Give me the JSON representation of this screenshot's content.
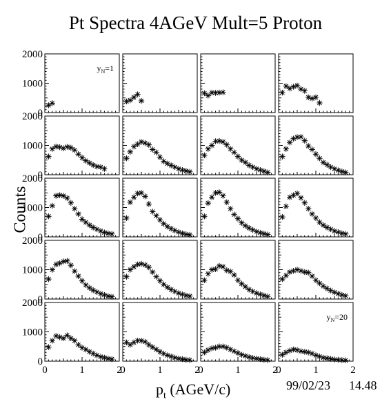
{
  "title": "Pt Spectra 4AGeV Mult=5 Proton",
  "xlabel_main": "p",
  "xlabel_sub": "t",
  "xlabel_unit": " (AGeV/c)",
  "ylabel": "Counts",
  "date": "99/02/23",
  "time": "14.48",
  "chart_data": {
    "type": "scatter",
    "marker": "asterisk",
    "layout": "5 rows x 4 columns of panels",
    "xlim": [
      0,
      2
    ],
    "ylim": [
      0,
      2000
    ],
    "x_ticks": [
      "0",
      "1",
      "2"
    ],
    "y_ticks": [
      "0",
      "1000",
      "2000"
    ],
    "xlabel": "p_t (AGeV/c)",
    "ylabel": "Counts",
    "annotations": [
      {
        "panel": 1,
        "text": "y_N=1"
      },
      {
        "panel": 20,
        "text": "y_N=20"
      }
    ],
    "panels": [
      {
        "x": [
          0.1,
          0.2
        ],
        "y": [
          250,
          320
        ]
      },
      {
        "x": [
          0.1,
          0.2,
          0.3,
          0.4,
          0.5
        ],
        "y": [
          380,
          420,
          520,
          620,
          400
        ]
      },
      {
        "x": [
          0.1,
          0.2,
          0.3,
          0.4,
          0.5,
          0.6
        ],
        "y": [
          660,
          580,
          680,
          670,
          680,
          690
        ]
      },
      {
        "x": [
          0.1,
          0.2,
          0.3,
          0.4,
          0.5,
          0.6,
          0.7,
          0.8,
          0.9,
          1.0,
          1.1
        ],
        "y": [
          680,
          900,
          820,
          880,
          920,
          800,
          740,
          520,
          480,
          520,
          330
        ]
      },
      {
        "x": [
          0.1,
          0.2,
          0.3,
          0.4,
          0.5,
          0.6,
          0.7,
          0.8,
          0.9,
          1.0,
          1.1,
          1.2,
          1.3,
          1.4,
          1.5,
          1.6
        ],
        "y": [
          620,
          880,
          960,
          940,
          900,
          950,
          920,
          840,
          700,
          580,
          480,
          400,
          330,
          280,
          260,
          200
        ]
      },
      {
        "x": [
          0.1,
          0.2,
          0.3,
          0.4,
          0.5,
          0.6,
          0.7,
          0.8,
          0.9,
          1.0,
          1.1,
          1.2,
          1.3,
          1.4,
          1.5,
          1.6,
          1.7,
          1.8
        ],
        "y": [
          560,
          780,
          960,
          1040,
          1120,
          1080,
          1020,
          860,
          760,
          600,
          460,
          380,
          320,
          260,
          200,
          160,
          130,
          100
        ]
      },
      {
        "x": [
          0.1,
          0.2,
          0.3,
          0.4,
          0.5,
          0.6,
          0.7,
          0.8,
          0.9,
          1.0,
          1.1,
          1.2,
          1.3,
          1.4,
          1.5,
          1.6,
          1.7,
          1.8
        ],
        "y": [
          660,
          880,
          1000,
          1140,
          1150,
          1120,
          1020,
          880,
          760,
          620,
          500,
          420,
          320,
          260,
          200,
          160,
          120,
          80
        ]
      },
      {
        "x": [
          0.1,
          0.2,
          0.3,
          0.4,
          0.5,
          0.6,
          0.7,
          0.8,
          0.9,
          1.0,
          1.1,
          1.2,
          1.3,
          1.4,
          1.5,
          1.6,
          1.7,
          1.8
        ],
        "y": [
          620,
          880,
          1100,
          1230,
          1280,
          1290,
          1160,
          980,
          860,
          700,
          560,
          420,
          340,
          260,
          200,
          150,
          110,
          80
        ]
      },
      {
        "x": [
          0.1,
          0.2,
          0.3,
          0.4,
          0.5,
          0.6,
          0.7,
          0.8,
          0.9,
          1.0,
          1.1,
          1.2,
          1.3,
          1.4,
          1.5,
          1.6,
          1.7,
          1.8
        ],
        "y": [
          700,
          1060,
          1400,
          1420,
          1400,
          1320,
          1160,
          960,
          780,
          600,
          500,
          400,
          320,
          260,
          200,
          150,
          120,
          100
        ]
      },
      {
        "x": [
          0.1,
          0.2,
          0.3,
          0.4,
          0.5,
          0.6,
          0.7,
          0.8,
          0.9,
          1.0,
          1.1,
          1.2,
          1.3,
          1.4,
          1.5,
          1.6,
          1.7,
          1.8
        ],
        "y": [
          640,
          1180,
          1350,
          1480,
          1500,
          1380,
          1120,
          860,
          720,
          580,
          450,
          350,
          280,
          220,
          160,
          120,
          90,
          70
        ]
      },
      {
        "x": [
          0.1,
          0.2,
          0.3,
          0.4,
          0.5,
          0.6,
          0.7,
          0.8,
          0.9,
          1.0,
          1.1,
          1.2,
          1.3,
          1.4,
          1.5,
          1.6,
          1.7,
          1.8
        ],
        "y": [
          700,
          1150,
          1350,
          1500,
          1520,
          1400,
          1180,
          960,
          760,
          620,
          480,
          380,
          300,
          240,
          180,
          140,
          110,
          80
        ]
      },
      {
        "x": [
          0.1,
          0.2,
          0.3,
          0.4,
          0.5,
          0.6,
          0.7,
          0.8,
          0.9,
          1.0,
          1.1,
          1.2,
          1.3,
          1.4,
          1.5,
          1.6,
          1.7,
          1.8
        ],
        "y": [
          680,
          1040,
          1350,
          1420,
          1480,
          1330,
          1160,
          960,
          780,
          640,
          500,
          400,
          320,
          260,
          200,
          160,
          120,
          100
        ]
      },
      {
        "x": [
          0.1,
          0.2,
          0.3,
          0.4,
          0.5,
          0.6,
          0.7,
          0.8,
          0.9,
          1.0,
          1.1,
          1.2,
          1.3,
          1.4,
          1.5,
          1.6,
          1.7,
          1.8
        ],
        "y": [
          680,
          1000,
          1180,
          1220,
          1280,
          1300,
          1150,
          950,
          780,
          620,
          480,
          380,
          300,
          240,
          180,
          140,
          100,
          80
        ]
      },
      {
        "x": [
          0.1,
          0.2,
          0.3,
          0.4,
          0.5,
          0.6,
          0.7,
          0.8,
          0.9,
          1.0,
          1.1,
          1.2,
          1.3,
          1.4,
          1.5,
          1.6,
          1.7,
          1.8
        ],
        "y": [
          760,
          1000,
          1100,
          1180,
          1200,
          1160,
          1080,
          920,
          760,
          620,
          500,
          400,
          320,
          260,
          200,
          160,
          120,
          100
        ]
      },
      {
        "x": [
          0.1,
          0.2,
          0.3,
          0.4,
          0.5,
          0.6,
          0.7,
          0.8,
          0.9,
          1.0,
          1.1,
          1.2,
          1.3,
          1.4,
          1.5,
          1.6,
          1.7,
          1.8
        ],
        "y": [
          640,
          860,
          1000,
          1020,
          1130,
          1100,
          980,
          940,
          820,
          640,
          520,
          420,
          320,
          260,
          200,
          160,
          120,
          90
        ]
      },
      {
        "x": [
          0.1,
          0.2,
          0.3,
          0.4,
          0.5,
          0.6,
          0.7,
          0.8,
          0.9,
          1.0,
          1.1,
          1.2,
          1.3,
          1.4,
          1.5,
          1.6,
          1.7,
          1.8
        ],
        "y": [
          680,
          800,
          920,
          960,
          1000,
          960,
          920,
          900,
          780,
          640,
          540,
          440,
          360,
          290,
          230,
          180,
          140,
          110
        ]
      },
      {
        "x": [
          0.1,
          0.2,
          0.3,
          0.4,
          0.5,
          0.6,
          0.7,
          0.8,
          0.9,
          1.0,
          1.1,
          1.2,
          1.3,
          1.4,
          1.5,
          1.6,
          1.7,
          1.8
        ],
        "y": [
          480,
          700,
          860,
          820,
          780,
          880,
          780,
          700,
          560,
          460,
          400,
          320,
          260,
          200,
          150,
          120,
          90,
          70
        ]
      },
      {
        "x": [
          0.1,
          0.2,
          0.3,
          0.4,
          0.5,
          0.6,
          0.7,
          0.8,
          0.9,
          1.0,
          1.1,
          1.2,
          1.3,
          1.4,
          1.5,
          1.6,
          1.7,
          1.8
        ],
        "y": [
          640,
          560,
          640,
          700,
          700,
          660,
          560,
          480,
          400,
          320,
          260,
          200,
          160,
          120,
          90,
          70,
          50,
          40
        ]
      },
      {
        "x": [
          0.1,
          0.2,
          0.3,
          0.4,
          0.5,
          0.6,
          0.7,
          0.8,
          0.9,
          1.0,
          1.1,
          1.2,
          1.3,
          1.4,
          1.5,
          1.6,
          1.7,
          1.8
        ],
        "y": [
          300,
          380,
          440,
          460,
          500,
          500,
          460,
          400,
          340,
          280,
          220,
          180,
          140,
          110,
          90,
          70,
          50,
          40
        ]
      },
      {
        "x": [
          0.1,
          0.2,
          0.3,
          0.4,
          0.5,
          0.6,
          0.7,
          0.8,
          0.9,
          1.0,
          1.1,
          1.2,
          1.3,
          1.4,
          1.5,
          1.6,
          1.7,
          1.8
        ],
        "y": [
          220,
          300,
          360,
          400,
          380,
          340,
          320,
          300,
          260,
          200,
          160,
          120,
          100,
          80,
          60,
          50,
          40,
          30
        ]
      }
    ]
  }
}
